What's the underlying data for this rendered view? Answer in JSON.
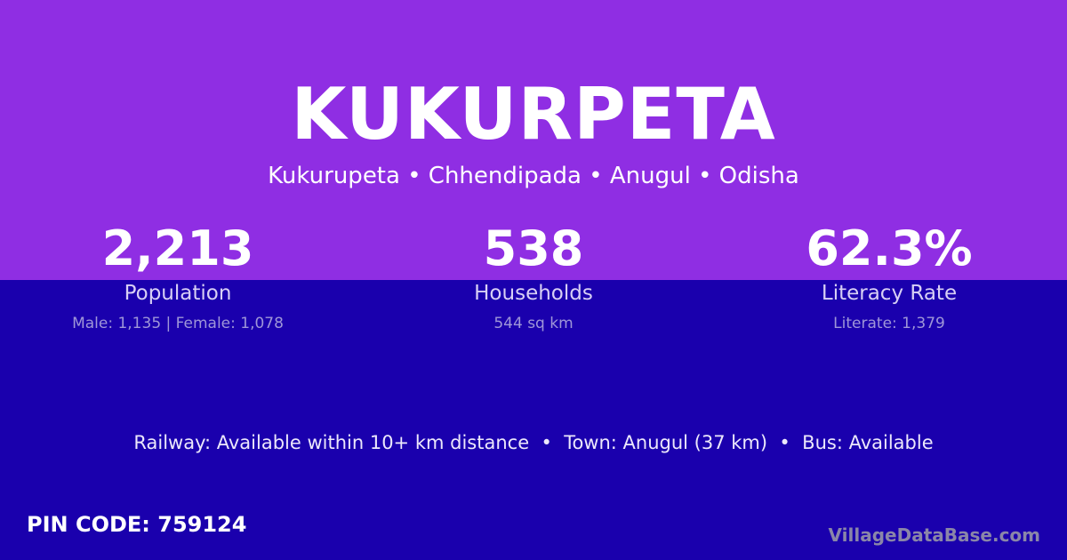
{
  "colors": {
    "top_bg": "#8f2ee3",
    "bottom_bg": "#1a00ad"
  },
  "title": "KUKURPETA",
  "subtitle": "Kukurupeta • Chhendipada • Anugul • Odisha",
  "stats": [
    {
      "value": "2,213",
      "label": "Population",
      "sub": "Male: 1,135 | Female: 1,078"
    },
    {
      "value": "538",
      "label": "Households",
      "sub": "544 sq km"
    },
    {
      "value": "62.3%",
      "label": "Literacy Rate",
      "sub": "Literate: 1,379"
    }
  ],
  "info": "Railway: Available within 10+ km distance  •  Town: Anugul (37 km)  •  Bus: Available",
  "pin": "PIN CODE: 759124",
  "brand": "VillageDataBase.com"
}
